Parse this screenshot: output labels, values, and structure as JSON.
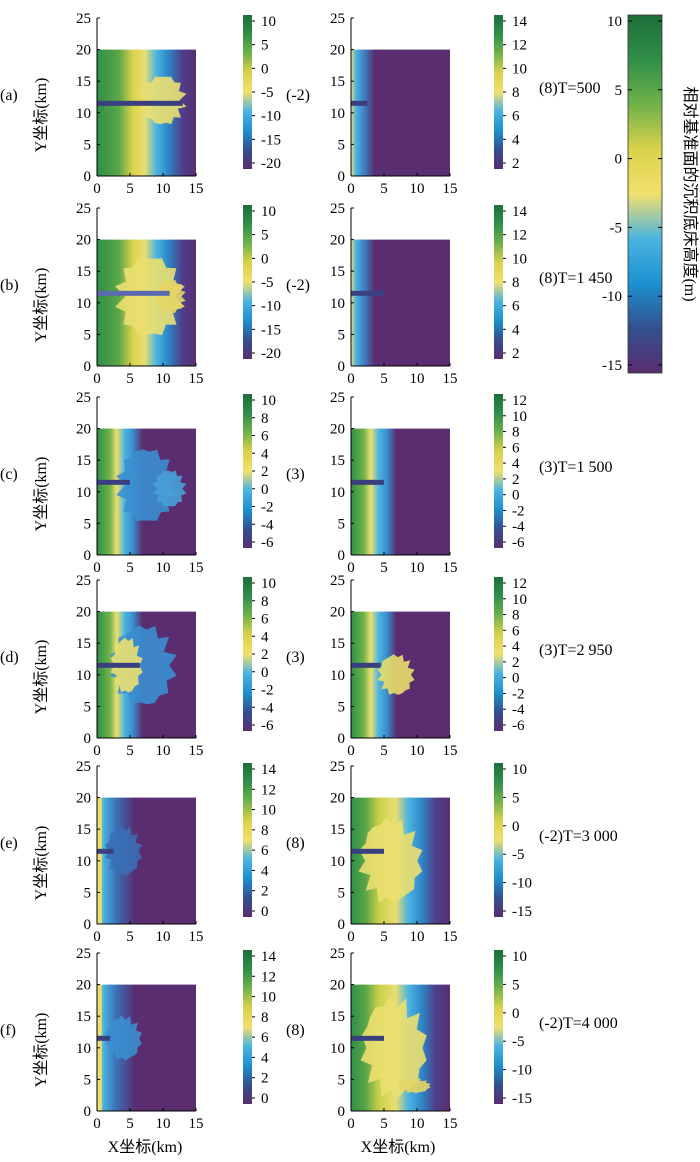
{
  "figure": {
    "x_label": "X坐标(km)",
    "y_label": "Y坐标(km)",
    "legend_title": "相对基准面的沉积底床高度(m)",
    "legend_ticks": [
      "10",
      "5",
      "0",
      "-5",
      "-10",
      "-15"
    ],
    "colormap": [
      "#5a2d70",
      "#33508e",
      "#1d90cf",
      "#4bb4e0",
      "#f2df6c",
      "#d9d24a",
      "#71b24a",
      "#2f8f48",
      "#1e6e3a"
    ]
  },
  "chart_data": [
    {
      "type": "heatmap",
      "row": "(a)",
      "left": true,
      "row_label": "(a)",
      "time_label": "",
      "xlim": [
        0,
        15
      ],
      "ylim": [
        0,
        25
      ],
      "x_ticks": [
        "0",
        "5",
        "10",
        "15"
      ],
      "y_ticks": [
        "0",
        "5",
        "10",
        "15",
        "20",
        "25"
      ],
      "cbar_ticks": [
        "10",
        "5",
        "0",
        "-5",
        "-10",
        "-15",
        "-20"
      ],
      "cbar_range": [
        -20,
        10
      ]
    },
    {
      "type": "heatmap",
      "row": "(a)",
      "left": false,
      "row_label": "(-2)",
      "time_label": "(8)T=500",
      "xlim": [
        0,
        15
      ],
      "ylim": [
        0,
        25
      ],
      "x_ticks": [
        "0",
        "5",
        "10",
        "15"
      ],
      "y_ticks": [
        "0",
        "5",
        "10",
        "15",
        "20",
        "25"
      ],
      "cbar_ticks": [
        "14",
        "12",
        "10",
        "8",
        "6",
        "4",
        "2"
      ],
      "cbar_range": [
        2,
        14
      ]
    },
    {
      "type": "heatmap",
      "row": "(b)",
      "left": true,
      "row_label": "(b)",
      "time_label": "",
      "xlim": [
        0,
        15
      ],
      "ylim": [
        0,
        25
      ],
      "x_ticks": [
        "0",
        "5",
        "10",
        "15"
      ],
      "y_ticks": [
        "0",
        "5",
        "10",
        "15",
        "20",
        "25"
      ],
      "cbar_ticks": [
        "10",
        "5",
        "0",
        "-5",
        "-10",
        "-15",
        "-20"
      ],
      "cbar_range": [
        -20,
        10
      ]
    },
    {
      "type": "heatmap",
      "row": "(b)",
      "left": false,
      "row_label": "(-2)",
      "time_label": "(8)T=1 450",
      "xlim": [
        0,
        15
      ],
      "ylim": [
        0,
        25
      ],
      "x_ticks": [
        "0",
        "5",
        "10",
        "15"
      ],
      "y_ticks": [
        "0",
        "5",
        "10",
        "15",
        "20",
        "25"
      ],
      "cbar_ticks": [
        "14",
        "12",
        "10",
        "8",
        "6",
        "4",
        "2"
      ],
      "cbar_range": [
        2,
        14
      ]
    },
    {
      "type": "heatmap",
      "row": "(c)",
      "left": true,
      "row_label": "(c)",
      "time_label": "",
      "xlim": [
        0,
        15
      ],
      "ylim": [
        0,
        25
      ],
      "x_ticks": [
        "0",
        "5",
        "10",
        "15"
      ],
      "y_ticks": [
        "0",
        "5",
        "10",
        "15",
        "20",
        "25"
      ],
      "cbar_ticks": [
        "10",
        "8",
        "6",
        "4",
        "2",
        "0",
        "-2",
        "-4",
        "-6"
      ],
      "cbar_range": [
        -6,
        10
      ]
    },
    {
      "type": "heatmap",
      "row": "(c)",
      "left": false,
      "row_label": "(3)",
      "time_label": "(3)T=1 500",
      "xlim": [
        0,
        15
      ],
      "ylim": [
        0,
        25
      ],
      "x_ticks": [
        "0",
        "5",
        "10",
        "15"
      ],
      "y_ticks": [
        "0",
        "5",
        "10",
        "15",
        "20",
        "25"
      ],
      "cbar_ticks": [
        "12",
        "10",
        "8",
        "6",
        "4",
        "2",
        "0",
        "-2",
        "-4",
        "-6"
      ],
      "cbar_range": [
        -6,
        12
      ]
    },
    {
      "type": "heatmap",
      "row": "(d)",
      "left": true,
      "row_label": "(d)",
      "time_label": "",
      "xlim": [
        0,
        15
      ],
      "ylim": [
        0,
        25
      ],
      "x_ticks": [
        "0",
        "5",
        "10",
        "15"
      ],
      "y_ticks": [
        "0",
        "5",
        "10",
        "15",
        "20",
        "25"
      ],
      "cbar_ticks": [
        "10",
        "8",
        "6",
        "4",
        "2",
        "0",
        "-2",
        "-4",
        "-6"
      ],
      "cbar_range": [
        -6,
        10
      ]
    },
    {
      "type": "heatmap",
      "row": "(d)",
      "left": false,
      "row_label": "(3)",
      "time_label": "(3)T=2 950",
      "xlim": [
        0,
        15
      ],
      "ylim": [
        0,
        25
      ],
      "x_ticks": [
        "0",
        "5",
        "10",
        "15"
      ],
      "y_ticks": [
        "0",
        "5",
        "10",
        "15",
        "20",
        "25"
      ],
      "cbar_ticks": [
        "12",
        "10",
        "8",
        "6",
        "4",
        "2",
        "0",
        "-2",
        "-4",
        "-6"
      ],
      "cbar_range": [
        -6,
        12
      ]
    },
    {
      "type": "heatmap",
      "row": "(e)",
      "left": true,
      "row_label": "(e)",
      "time_label": "",
      "xlim": [
        0,
        15
      ],
      "ylim": [
        0,
        25
      ],
      "x_ticks": [
        "0",
        "5",
        "10",
        "15"
      ],
      "y_ticks": [
        "0",
        "5",
        "10",
        "15",
        "20",
        "25"
      ],
      "cbar_ticks": [
        "14",
        "12",
        "10",
        "8",
        "6",
        "4",
        "2",
        "0"
      ],
      "cbar_range": [
        0,
        14
      ]
    },
    {
      "type": "heatmap",
      "row": "(e)",
      "left": false,
      "row_label": "(8)",
      "time_label": "(-2)T=3 000",
      "xlim": [
        0,
        15
      ],
      "ylim": [
        0,
        25
      ],
      "x_ticks": [
        "0",
        "5",
        "10",
        "15"
      ],
      "y_ticks": [
        "0",
        "5",
        "10",
        "15",
        "20",
        "25"
      ],
      "cbar_ticks": [
        "10",
        "5",
        "0",
        "-5",
        "-10",
        "-15"
      ],
      "cbar_range": [
        -15,
        10
      ]
    },
    {
      "type": "heatmap",
      "row": "(f)",
      "left": true,
      "row_label": "(f)",
      "time_label": "",
      "xlim": [
        0,
        15
      ],
      "ylim": [
        0,
        25
      ],
      "x_ticks": [
        "0",
        "5",
        "10",
        "15"
      ],
      "y_ticks": [
        "0",
        "5",
        "10",
        "15",
        "20",
        "25"
      ],
      "cbar_ticks": [
        "14",
        "12",
        "10",
        "8",
        "6",
        "4",
        "2",
        "0"
      ],
      "cbar_range": [
        0,
        14
      ]
    },
    {
      "type": "heatmap",
      "row": "(f)",
      "left": false,
      "row_label": "(8)",
      "time_label": "(-2)T=4 000",
      "xlim": [
        0,
        15
      ],
      "ylim": [
        0,
        25
      ],
      "x_ticks": [
        "0",
        "5",
        "10",
        "15"
      ],
      "y_ticks": [
        "0",
        "5",
        "10",
        "15",
        "20",
        "25"
      ],
      "cbar_ticks": [
        "10",
        "5",
        "0",
        "-5",
        "-10",
        "-15"
      ],
      "cbar_range": [
        -15,
        10
      ]
    }
  ]
}
